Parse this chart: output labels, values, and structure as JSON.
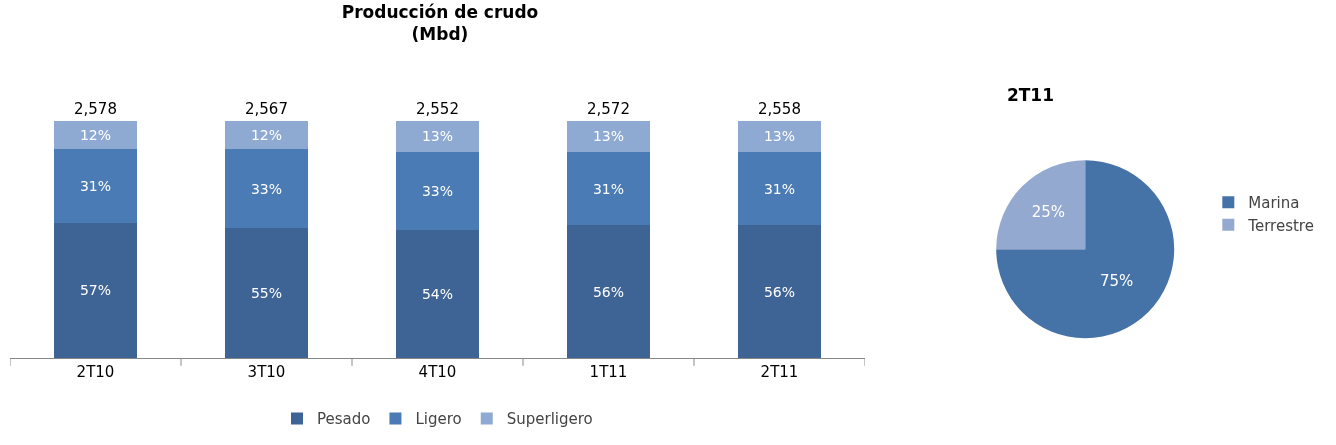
{
  "chart_data": [
    {
      "type": "bar",
      "title": "Producción de crudo",
      "subtitle": "(Mbd)",
      "categories": [
        "2T10",
        "3T10",
        "4T10",
        "1T11",
        "2T11"
      ],
      "stacked": true,
      "tick_labels": "x",
      "legend": "bottom",
      "series": [
        {
          "name": "Pesado",
          "color": "#3e6496",
          "values": [
            57,
            55,
            54,
            56,
            56
          ],
          "value_labels": [
            "57%",
            "55%",
            "54%",
            "56%",
            "56%"
          ]
        },
        {
          "name": "Ligero",
          "color": "#4a7bb5",
          "values": [
            31,
            33,
            33,
            31,
            31
          ],
          "value_labels": [
            "31%",
            "33%",
            "33%",
            "31%",
            "31%"
          ]
        },
        {
          "name": "Superligero",
          "color": "#8eaad3",
          "values": [
            12,
            12,
            13,
            13,
            13
          ],
          "value_labels": [
            "12%",
            "12%",
            "13%",
            "13%",
            "13%"
          ]
        }
      ],
      "annotations": [
        {
          "text": "2,578",
          "x": "2T10",
          "y": 100
        },
        {
          "text": "2,567",
          "x": "3T10",
          "y": 100
        },
        {
          "text": "2,552",
          "x": "4T10",
          "y": 100
        },
        {
          "text": "2,572",
          "x": "1T11",
          "y": 100
        },
        {
          "text": "2,558",
          "x": "2T11",
          "y": 100
        }
      ]
    },
    {
      "type": "pie",
      "title": "2T11",
      "categories": [
        "Marina",
        "Terrestre"
      ],
      "values": [
        75,
        25
      ],
      "colors": [
        "#4572a7",
        "#94a9cf"
      ],
      "value_labels": [
        "75%",
        "25%"
      ],
      "legend": "right"
    }
  ]
}
